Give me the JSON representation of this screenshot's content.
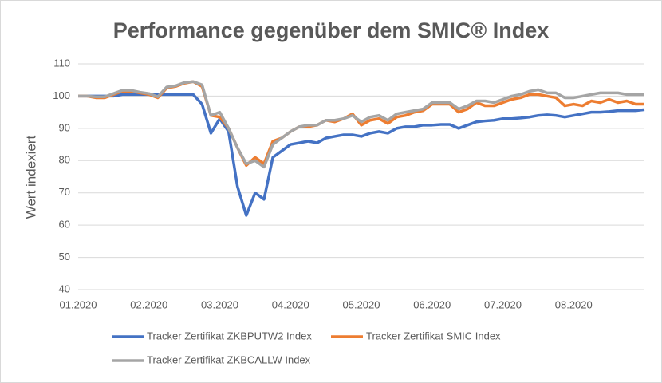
{
  "chart_data": {
    "type": "line",
    "title": "Performance gegenüber dem SMIC® Index",
    "y_label": "Wert indexiert",
    "categories": [
      "01.2020",
      null,
      null,
      null,
      null,
      null,
      null,
      null,
      "02.2020",
      null,
      null,
      null,
      null,
      null,
      null,
      null,
      "03.2020",
      null,
      null,
      null,
      null,
      null,
      null,
      null,
      "04.2020",
      null,
      null,
      null,
      null,
      null,
      null,
      null,
      "05.2020",
      null,
      null,
      null,
      null,
      null,
      null,
      null,
      "06.2020",
      null,
      null,
      null,
      null,
      null,
      null,
      null,
      "07.2020",
      null,
      null,
      null,
      null,
      null,
      null,
      null,
      "08.2020",
      null,
      null,
      null,
      null,
      null,
      null,
      null,
      null
    ],
    "series": [
      {
        "name": "Tracker Zertifikat ZKBPUTW2 Index",
        "color": "#4472c4",
        "values": [
          100,
          100,
          100,
          100,
          100,
          100.5,
          100.5,
          100.5,
          100.5,
          100.5,
          100.5,
          100.5,
          100.5,
          100.5,
          97.5,
          88.5,
          93,
          89,
          72,
          63,
          70,
          68,
          81,
          83,
          85,
          85.5,
          86,
          85.5,
          87,
          87.5,
          88,
          88,
          87.5,
          88.5,
          89,
          88.5,
          90,
          90.5,
          90.5,
          91,
          91,
          91.2,
          91.2,
          90,
          91,
          92,
          92.3,
          92.5,
          93,
          93,
          93.2,
          93.5,
          94,
          94.2,
          94,
          93.5,
          94,
          94.5,
          95,
          95,
          95.2,
          95.5,
          95.5,
          95.5,
          95.8
        ]
      },
      {
        "name": "Tracker Zertifikat SMIC Index",
        "color": "#ed7d31",
        "values": [
          100,
          100,
          99.5,
          99.5,
          100.5,
          101.5,
          101.5,
          101,
          100.5,
          99.5,
          102.5,
          103,
          104,
          104.5,
          103,
          94,
          93.5,
          90,
          84,
          78.5,
          81,
          79,
          86,
          87,
          89,
          90.5,
          90.5,
          91,
          92.5,
          92,
          93,
          94.5,
          91,
          92.5,
          93,
          91.5,
          93.5,
          94,
          95,
          95.5,
          97.5,
          97.5,
          97.5,
          95,
          96,
          98,
          97,
          97,
          98,
          99,
          99.5,
          100.5,
          100.5,
          100,
          99.5,
          97,
          97.5,
          97,
          98.5,
          98,
          99,
          98,
          98.5,
          97.5,
          97.5
        ]
      },
      {
        "name": "Tracker Zertifikat ZKBCALLW Index",
        "color": "#a5a5a5",
        "values": [
          100,
          100,
          99.8,
          99.8,
          100.8,
          101.8,
          101.8,
          101.2,
          100.8,
          99.8,
          102.8,
          103.2,
          104.2,
          104.5,
          103.5,
          94,
          95,
          90,
          84,
          79,
          80,
          78,
          85,
          87,
          89,
          90.5,
          91,
          91,
          92.5,
          92.5,
          93,
          94,
          92,
          93.5,
          94,
          92.5,
          94.5,
          95,
          95.5,
          96,
          98,
          98,
          98,
          96,
          97,
          98.5,
          98.5,
          98,
          99,
          100,
          100.5,
          101.5,
          102,
          101,
          101,
          99.5,
          99.5,
          100,
          100.5,
          101,
          101,
          101,
          100.5,
          100.5,
          100.5
        ]
      }
    ],
    "ylim": [
      40,
      110
    ],
    "yticks": [
      40,
      50,
      60,
      70,
      80,
      90,
      100,
      110
    ],
    "grid": true,
    "legend": "bottom"
  }
}
